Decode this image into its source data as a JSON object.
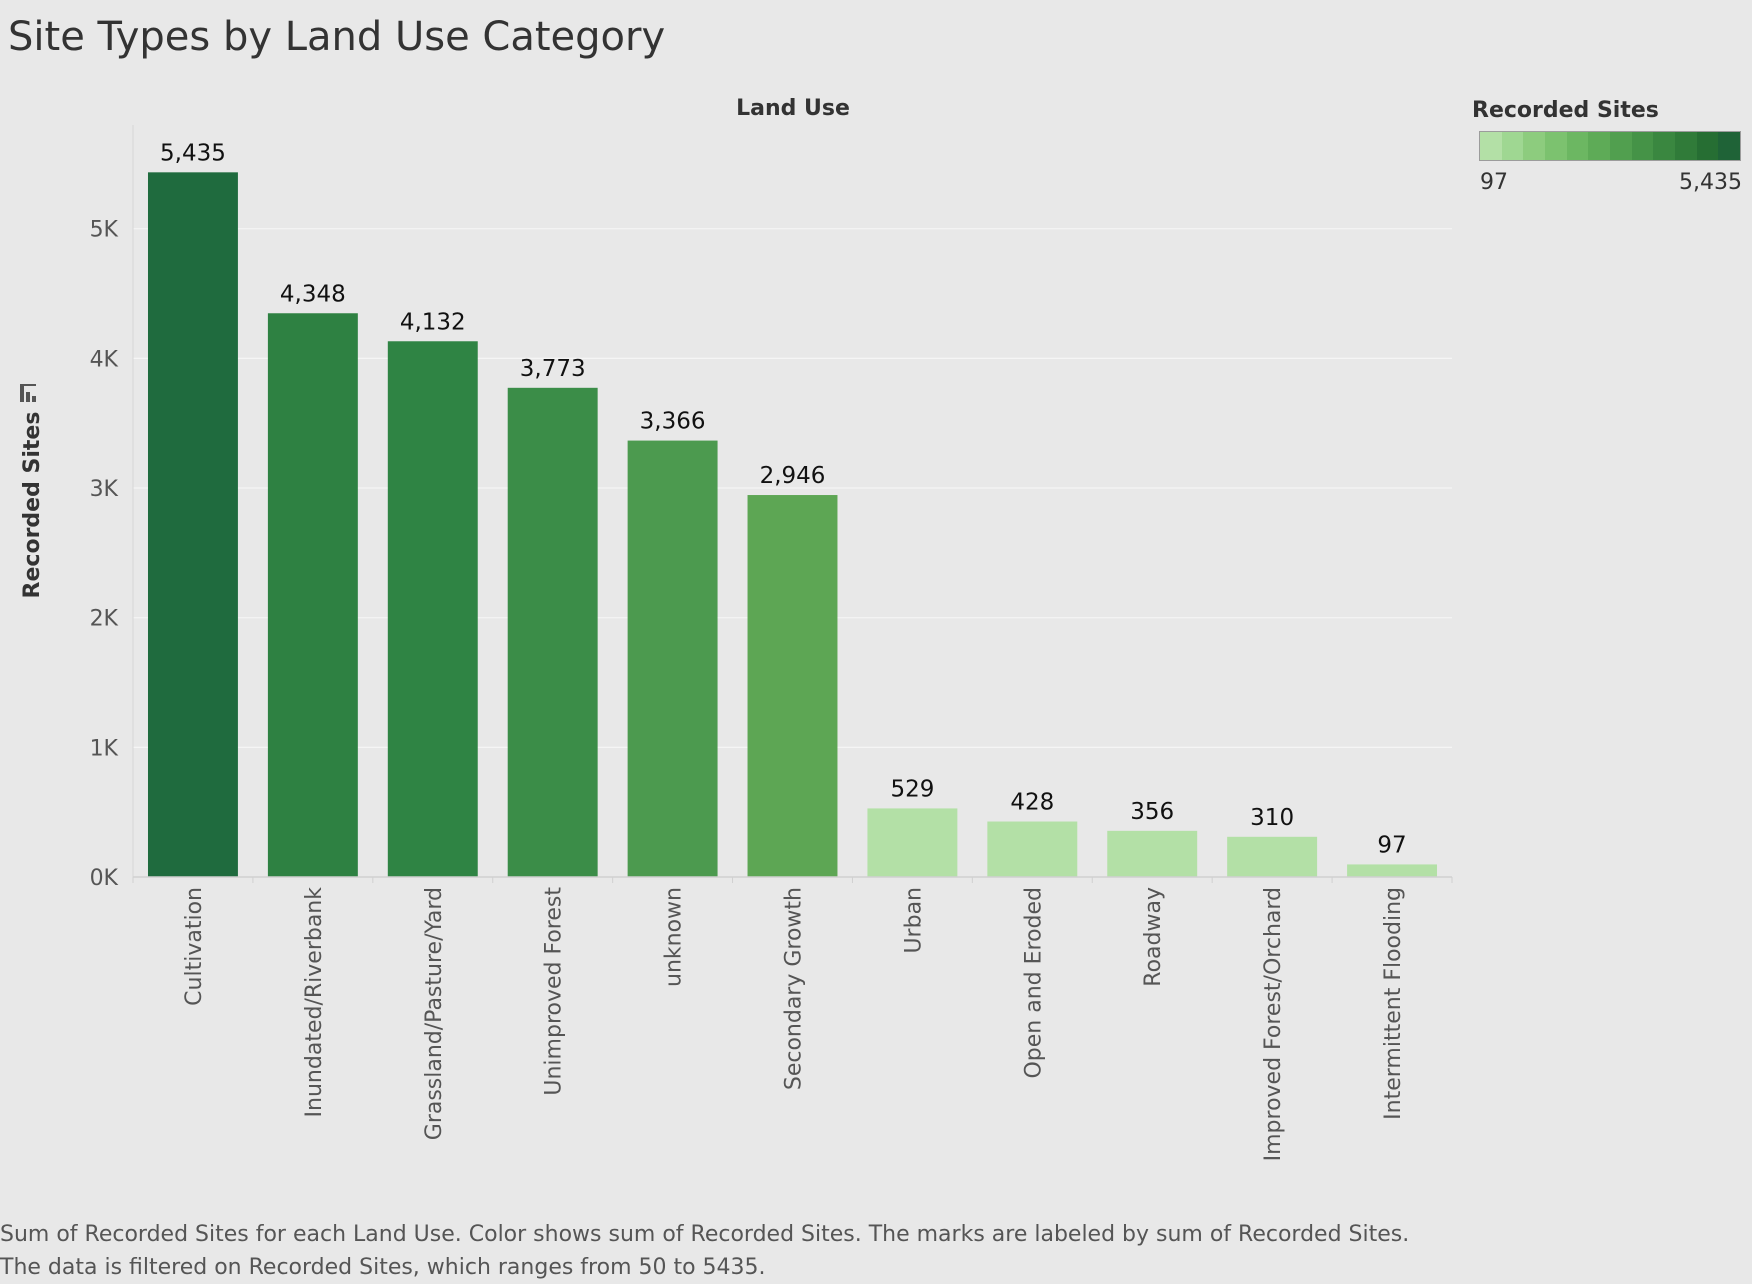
{
  "title": "Site Types by Land Use Category",
  "legend": {
    "title": "Recorded Sites",
    "min_label": "97",
    "max_label": "5,435",
    "ramp_colors": [
      "#b3e0a6",
      "#9fd792",
      "#8dcc7e",
      "#7cc26f",
      "#6cb762",
      "#5eab57",
      "#519f4f",
      "#459347",
      "#3a8740",
      "#307b39",
      "#266e33",
      "#1f6337"
    ]
  },
  "caption": {
    "line1": "Sum of Recorded Sites for each Land Use.  Color shows sum of Recorded Sites.  The marks are labeled by sum of Recorded Sites.",
    "line2": "The data is filtered on Recorded Sites, which ranges from 50 to 5435."
  },
  "sort_icon": "sort-descending-icon",
  "chart_data": {
    "type": "bar",
    "xlabel": "Land Use",
    "ylabel": "Recorded Sites",
    "ylim": [
      0,
      5800
    ],
    "grid": true,
    "legend_position": "top-right",
    "yticks": [
      0,
      1000,
      2000,
      3000,
      4000,
      5000
    ],
    "ytick_labels": [
      "0K",
      "1K",
      "2K",
      "3K",
      "4K",
      "5K"
    ],
    "categories": [
      "Cultivation",
      "Inundated/Riverbank",
      "Grassland/Pasture/Yard",
      "Unimproved Forest",
      "unknown",
      "Secondary Growth",
      "Urban",
      "Open and Eroded",
      "Roadway",
      "Improved Forest/Orchard",
      "Intermittent Flooding"
    ],
    "values": [
      5435,
      4348,
      4132,
      3773,
      3366,
      2946,
      529,
      428,
      356,
      310,
      97
    ],
    "value_labels": [
      "5,435",
      "4,348",
      "4,132",
      "3,773",
      "3,366",
      "2,946",
      "529",
      "428",
      "356",
      "310",
      "97"
    ],
    "bar_colors": [
      "#1f6b3e",
      "#2e8142",
      "#2f8444",
      "#3b8d48",
      "#4c9a4f",
      "#5da654",
      "#b3e0a6",
      "#b3e0a6",
      "#b3e0a6",
      "#b3e0a6",
      "#b3e0a6"
    ]
  }
}
